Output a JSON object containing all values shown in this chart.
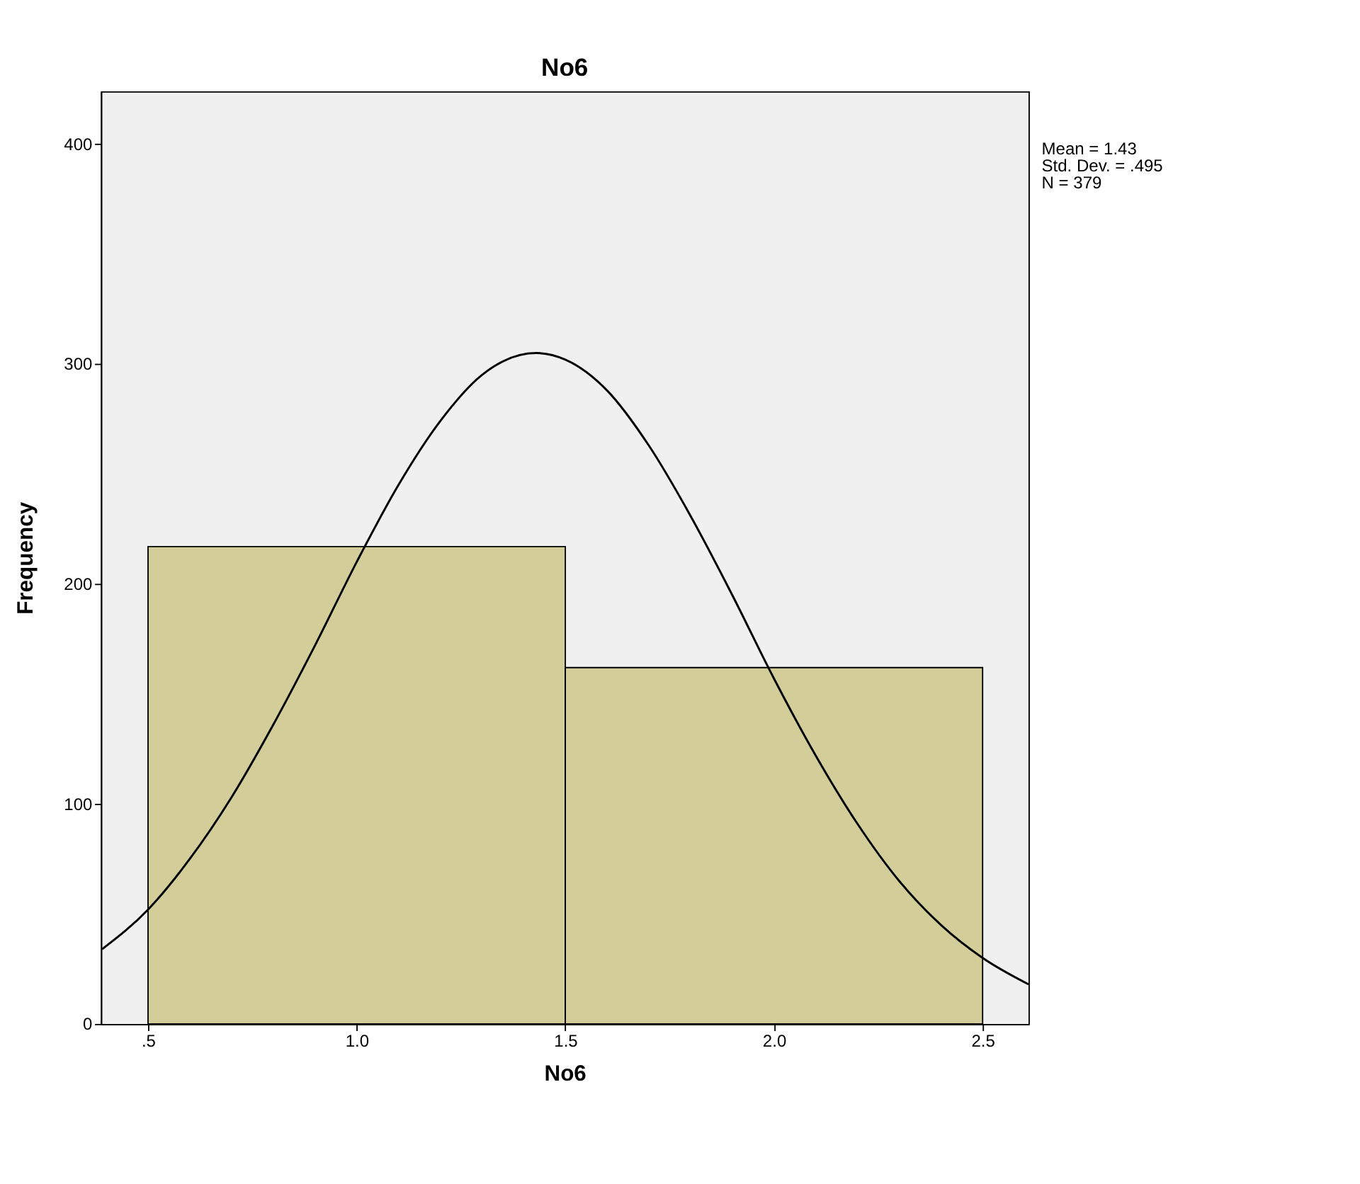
{
  "chart_data": {
    "type": "histogram",
    "title": "No6",
    "xlabel": "No6",
    "ylabel": "Frequency",
    "bins": [
      0.5,
      1.5,
      2.5
    ],
    "values": [
      217,
      162
    ],
    "color": "#d3ce99",
    "series": [
      {
        "type": "line",
        "color": "#000000",
        "x": [
          0.39,
          0.5,
          0.6,
          0.7,
          0.8,
          0.9,
          1.0,
          1.1,
          1.2,
          1.3,
          1.43,
          1.5,
          1.6,
          1.7,
          1.8,
          1.9,
          2.0,
          2.1,
          2.2,
          2.3,
          2.4,
          2.5,
          2.61
        ],
        "values": [
          34,
          52,
          75,
          103,
          136,
          172,
          210,
          245,
          274,
          295,
          305,
          302,
          288,
          263,
          231,
          195,
          157,
          122,
          91,
          65,
          45,
          30,
          18
        ]
      }
    ],
    "xlim": [
      0.387,
      2.61
    ],
    "ylim": [
      0,
      424
    ],
    "xticks": [
      {
        "value": 0.5,
        "label": ".5"
      },
      {
        "value": 1.0,
        "label": "1.0"
      },
      {
        "value": 1.5,
        "label": "1.5"
      },
      {
        "value": 2.0,
        "label": "2.0"
      },
      {
        "value": 2.5,
        "label": "2.5"
      }
    ],
    "yticks": [
      0,
      100,
      200,
      300,
      400
    ],
    "grid": false,
    "annotations": [
      "Mean = 1.43",
      "Std. Dev. = .495",
      "N = 379"
    ]
  }
}
